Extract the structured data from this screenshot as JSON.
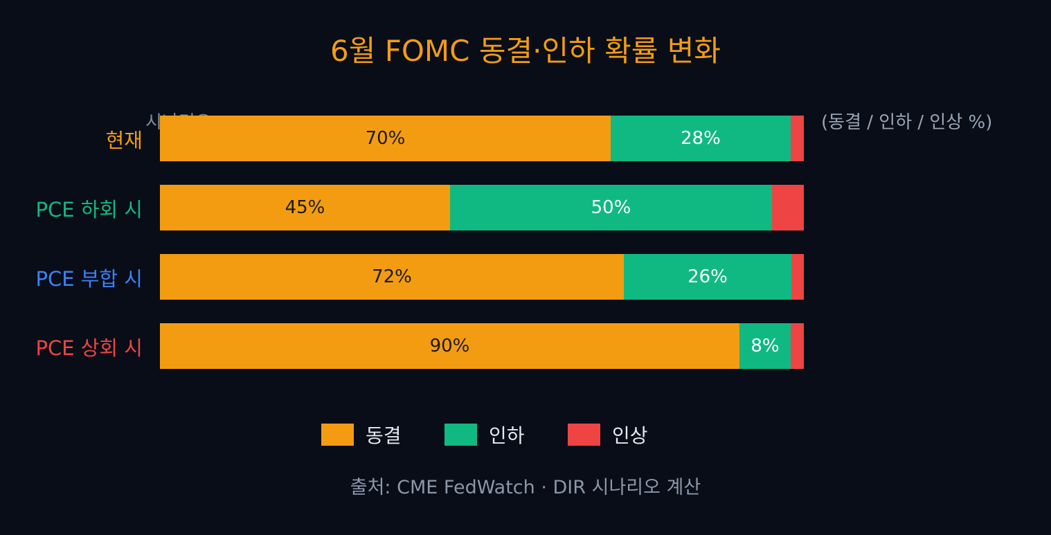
{
  "chart_data": {
    "type": "bar",
    "orientation": "horizontal",
    "stacked": true,
    "title": "6월 FOMC 동결·인하 확률 변화",
    "axis_caption": "시나리오",
    "unit_note": "(동결 / 인하 / 인상 %)",
    "categories": [
      {
        "label": "현재",
        "color": "#f39c12"
      },
      {
        "label": "PCE 하회 시",
        "color": "#10b981"
      },
      {
        "label": "PCE 부합 시",
        "color": "#3b82f6"
      },
      {
        "label": "PCE 상회 시",
        "color": "#ef4444"
      }
    ],
    "series": [
      {
        "name": "동결",
        "color": "#f39c12",
        "text_color": "#1a1a1a",
        "values": [
          70,
          45,
          72,
          90
        ],
        "labels": [
          "70%",
          "45%",
          "72%",
          "90%"
        ]
      },
      {
        "name": "인하",
        "color": "#10b981",
        "text_color": "#ffffff",
        "values": [
          28,
          50,
          26,
          8
        ],
        "labels": [
          "28%",
          "50%",
          "26%",
          "8%"
        ]
      },
      {
        "name": "인상",
        "color": "#ef4444",
        "text_color": "#ffffff",
        "values": [
          2,
          5,
          2,
          2
        ],
        "labels": [
          "",
          "",
          "",
          ""
        ]
      }
    ],
    "xlim": [
      0,
      100
    ],
    "grid": false,
    "legend_position": "bottom"
  },
  "source": "출처: CME FedWatch · DIR 시나리오 계산"
}
